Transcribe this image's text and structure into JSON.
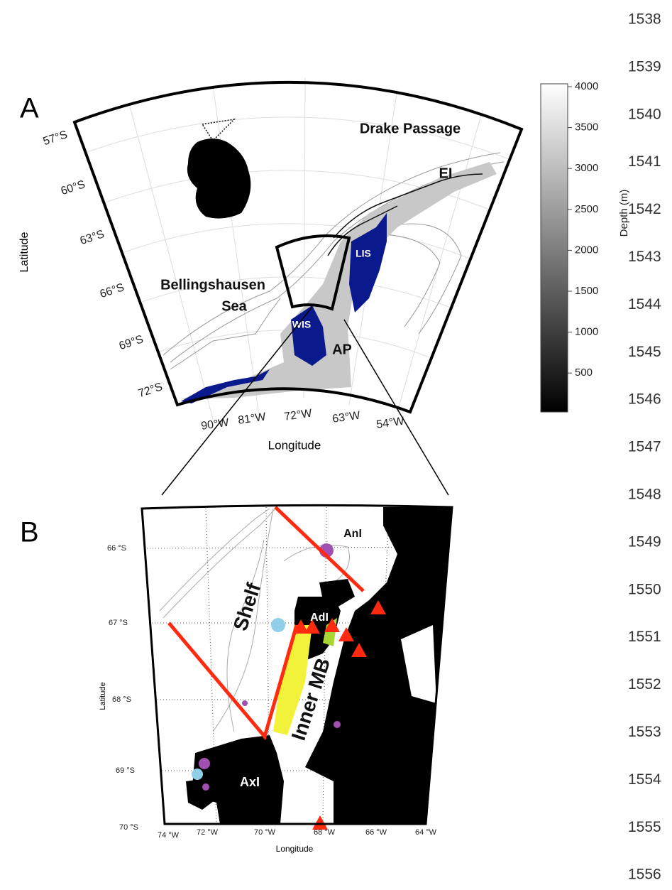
{
  "line_numbers": [
    "1538",
    "1539",
    "1540",
    "1541",
    "1542",
    "1543",
    "1544",
    "1545",
    "1546",
    "1547",
    "1548",
    "1549",
    "1550",
    "1551",
    "1552",
    "1553",
    "1554",
    "1555",
    "1556"
  ],
  "panel_a": {
    "label": "A",
    "lat_labels": [
      "57°S",
      "60°S",
      "63°S",
      "66°S",
      "69°S",
      "72°S"
    ],
    "lon_labels": [
      "90°W",
      "81°W",
      "72°W",
      "63°W",
      "54°W"
    ],
    "x_label": "Longitude",
    "y_label": "Latitude",
    "places": [
      "Drake Passage",
      "EI",
      "Bellingshausen",
      "Sea",
      "LIS",
      "WIS",
      "AP"
    ],
    "colorbar": {
      "label": "Depth (m)",
      "ticks": [
        "4000",
        "3500",
        "3000",
        "2500",
        "2000",
        "1500",
        "1000",
        "500"
      ]
    }
  },
  "panel_b": {
    "label": "B",
    "lat_labels": [
      "66 °S",
      "67 °S",
      "68 °S",
      "69 °S",
      "70 °S"
    ],
    "lon_labels": [
      "74 °W",
      "72 °W",
      "70 °W",
      "68 °W",
      "66 °W",
      "64 °W"
    ],
    "x_label": "Longitude",
    "y_label": "Latitude",
    "places": [
      "AnI",
      "AdI",
      "Shelf",
      "Inner MB",
      "AxI"
    ]
  }
}
